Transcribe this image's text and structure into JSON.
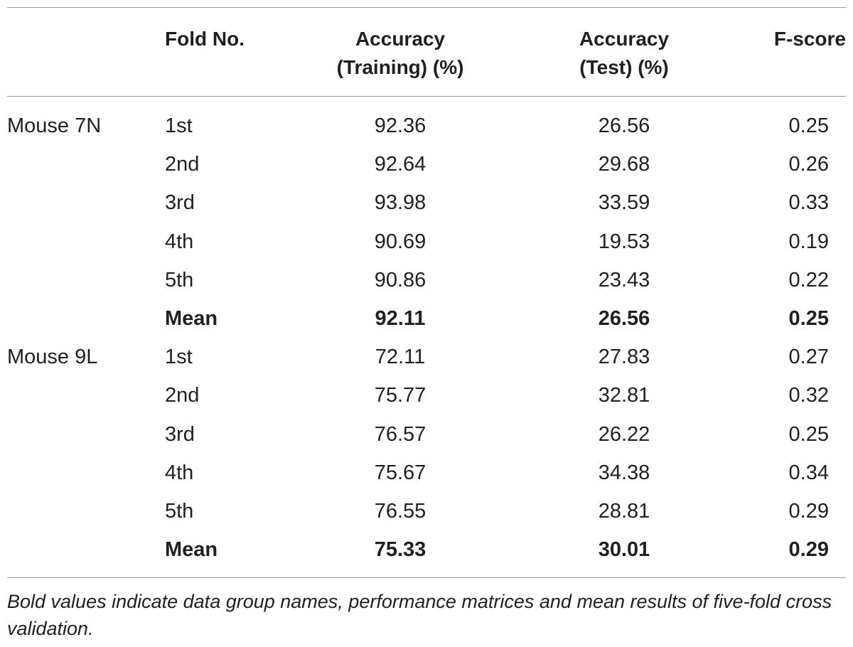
{
  "table": {
    "headers": {
      "group": "",
      "fold": "Fold No.",
      "training": "Accuracy\n(Training) (%)",
      "test": "Accuracy\n(Test) (%)",
      "fscore": "F-score"
    },
    "rows": [
      {
        "group": "Mouse 7N",
        "fold": "1st",
        "training": "92.36",
        "test": "26.56",
        "fscore": "0.25"
      },
      {
        "group": "",
        "fold": "2nd",
        "training": "92.64",
        "test": "29.68",
        "fscore": "0.26"
      },
      {
        "group": "",
        "fold": "3rd",
        "training": "93.98",
        "test": "33.59",
        "fscore": "0.33"
      },
      {
        "group": "",
        "fold": "4th",
        "training": "90.69",
        "test": "19.53",
        "fscore": "0.19"
      },
      {
        "group": "",
        "fold": "5th",
        "training": "90.86",
        "test": "23.43",
        "fscore": "0.22"
      },
      {
        "group": "",
        "fold": "Mean",
        "training": "92.11",
        "test": "26.56",
        "fscore": "0.25"
      },
      {
        "group": "Mouse 9L",
        "fold": "1st",
        "training": "72.11",
        "test": "27.83",
        "fscore": "0.27"
      },
      {
        "group": "",
        "fold": "2nd",
        "training": "75.77",
        "test": "32.81",
        "fscore": "0.32"
      },
      {
        "group": "",
        "fold": "3rd",
        "training": "76.57",
        "test": "26.22",
        "fscore": "0.25"
      },
      {
        "group": "",
        "fold": "4th",
        "training": "75.67",
        "test": "34.38",
        "fscore": "0.34"
      },
      {
        "group": "",
        "fold": "5th",
        "training": "76.55",
        "test": "28.81",
        "fscore": "0.29"
      },
      {
        "group": "",
        "fold": "Mean",
        "training": "75.33",
        "test": "30.01",
        "fscore": "0.29"
      }
    ],
    "footnote": "Bold values indicate data group names, performance matrices and mean results of five-fold cross validation."
  }
}
